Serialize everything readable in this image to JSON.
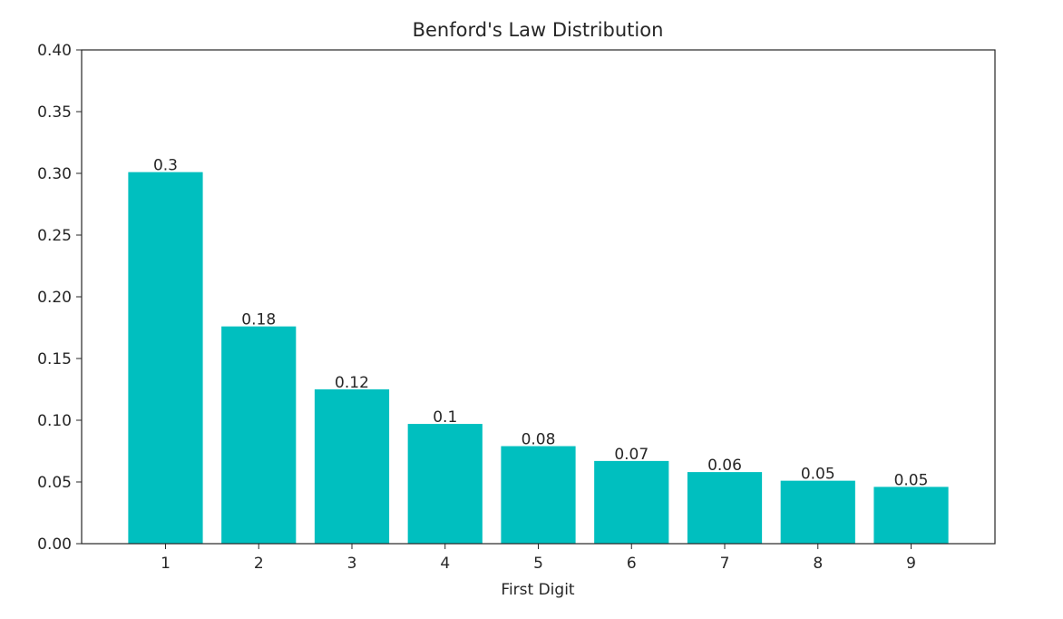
{
  "chart_data": {
    "type": "bar",
    "title": "Benford's Law Distribution",
    "xlabel": "First Digit",
    "ylabel": "",
    "categories": [
      "1",
      "2",
      "3",
      "4",
      "5",
      "6",
      "7",
      "8",
      "9"
    ],
    "values": [
      0.301,
      0.176,
      0.125,
      0.097,
      0.079,
      0.067,
      0.058,
      0.051,
      0.046
    ],
    "value_labels": [
      "0.3",
      "0.18",
      "0.12",
      "0.1",
      "0.08",
      "0.07",
      "0.06",
      "0.05",
      "0.05"
    ],
    "ylim": [
      0,
      0.4
    ],
    "yticks": [
      "0.00",
      "0.05",
      "0.10",
      "0.15",
      "0.20",
      "0.25",
      "0.30",
      "0.35",
      "0.40"
    ],
    "grid": false,
    "legend": "none",
    "colors": {
      "bar": "#00bfbf",
      "axis": "#262626"
    }
  }
}
